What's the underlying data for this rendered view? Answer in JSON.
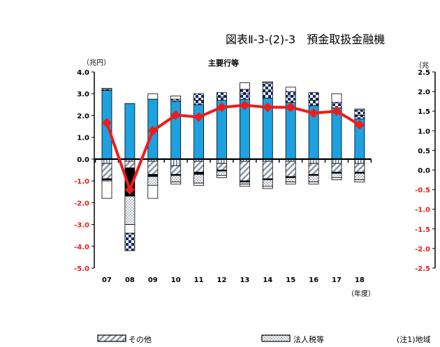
{
  "figure_title": "図表Ⅱ-3-(2)-3　預金取扱金融機",
  "subtitle": "主要行等",
  "unit_left": "（兆円）",
  "unit_right": "（兆",
  "year_unit": "（年度）",
  "note": "(注1)地域",
  "colors": {
    "blue": "#1da1e0",
    "navy": "#102a6b",
    "red": "#ee1c1c",
    "dot": "#7f8c9a",
    "black": "#000000"
  },
  "legend": [
    {
      "label": "その他",
      "pattern": "hatch"
    },
    {
      "label": "法人税等",
      "pattern": "dots"
    }
  ],
  "chart_data": {
    "type": "bar",
    "categories": [
      "07",
      "08",
      "09",
      "10",
      "11",
      "12",
      "13",
      "14",
      "15",
      "16",
      "17",
      "18"
    ],
    "ylim_left": [
      -5.0,
      4.0
    ],
    "yticks_left": [
      "4.0",
      "3.0",
      "2.0",
      "1.0",
      "0.0",
      "-1.0",
      "-2.0",
      "-3.0",
      "-4.0",
      "-5.0"
    ],
    "ylim_right": [
      -2.5,
      2.5
    ],
    "yticks_right": [
      "2.5",
      "2.0",
      "1.5",
      "1.0",
      "0.5",
      "0.0",
      "-0.5",
      "-1.0",
      "-1.5",
      "-2.0",
      "-2.5"
    ],
    "grid": false,
    "series": [
      {
        "values": [
          3.15,
          2.55,
          2.75,
          2.65,
          2.5,
          2.7,
          2.75,
          2.8,
          2.6,
          2.45,
          2.35,
          1.85
        ]
      },
      {
        "values": [
          0.05,
          0.0,
          0.0,
          0.1,
          0.2,
          0.15,
          0.25,
          0.3,
          0.3,
          0.25,
          0.25,
          0.15
        ]
      },
      {
        "values": [
          0.0,
          0.0,
          0.0,
          0.0,
          0.3,
          0.2,
          0.2,
          0.4,
          0.2,
          0.35,
          0.0,
          0.25
        ]
      },
      {
        "values": [
          0.05,
          0.0,
          0.25,
          0.15,
          0.0,
          0.0,
          0.3,
          0.05,
          0.2,
          0.0,
          0.4,
          0.05
        ]
      },
      {
        "values": [
          -0.2,
          -0.1,
          -0.1,
          -0.3,
          -0.1,
          -0.2,
          -0.1,
          -0.1,
          -0.1,
          -0.2,
          -0.2,
          -0.2
        ]
      },
      {
        "values": [
          -0.7,
          -0.3,
          -0.6,
          -0.4,
          -0.5,
          -0.3,
          -0.9,
          -0.8,
          -0.7,
          -0.5,
          -0.4,
          -0.4
        ]
      },
      {
        "values": [
          -0.05,
          -1.3,
          -0.1,
          -0.05,
          -0.1,
          -0.05,
          -0.05,
          -0.05,
          -0.05,
          -0.05,
          -0.05,
          -0.05
        ]
      },
      {
        "values": [
          -0.05,
          -1.3,
          -0.4,
          -0.3,
          -0.4,
          -0.2,
          -0.1,
          -0.3,
          -0.2,
          -0.3,
          -0.2,
          -0.3
        ]
      },
      {
        "values": [
          -0.8,
          -0.4,
          -0.6,
          -0.1,
          -0.1,
          -0.1,
          -0.1,
          -0.1,
          -0.1,
          -0.1,
          -0.1,
          -0.1
        ]
      },
      {
        "values": [
          0.0,
          -0.8,
          0.0,
          0.0,
          0.0,
          0.0,
          0.0,
          0.0,
          0.0,
          0.0,
          0.0,
          0.0
        ]
      },
      {
        "values": [
          -0.05,
          -0.1,
          -0.05,
          -0.05,
          -0.05,
          -0.05,
          -0.05,
          -0.05,
          -0.05,
          -0.05,
          -0.05,
          -0.05
        ],
        "axis": "right"
      },
      {
        "values": [
          1.2,
          -0.5,
          1.0,
          1.4,
          1.35,
          1.6,
          1.65,
          1.6,
          1.6,
          1.45,
          1.5,
          1.15
        ],
        "axis": "right",
        "kind": "line"
      }
    ]
  }
}
